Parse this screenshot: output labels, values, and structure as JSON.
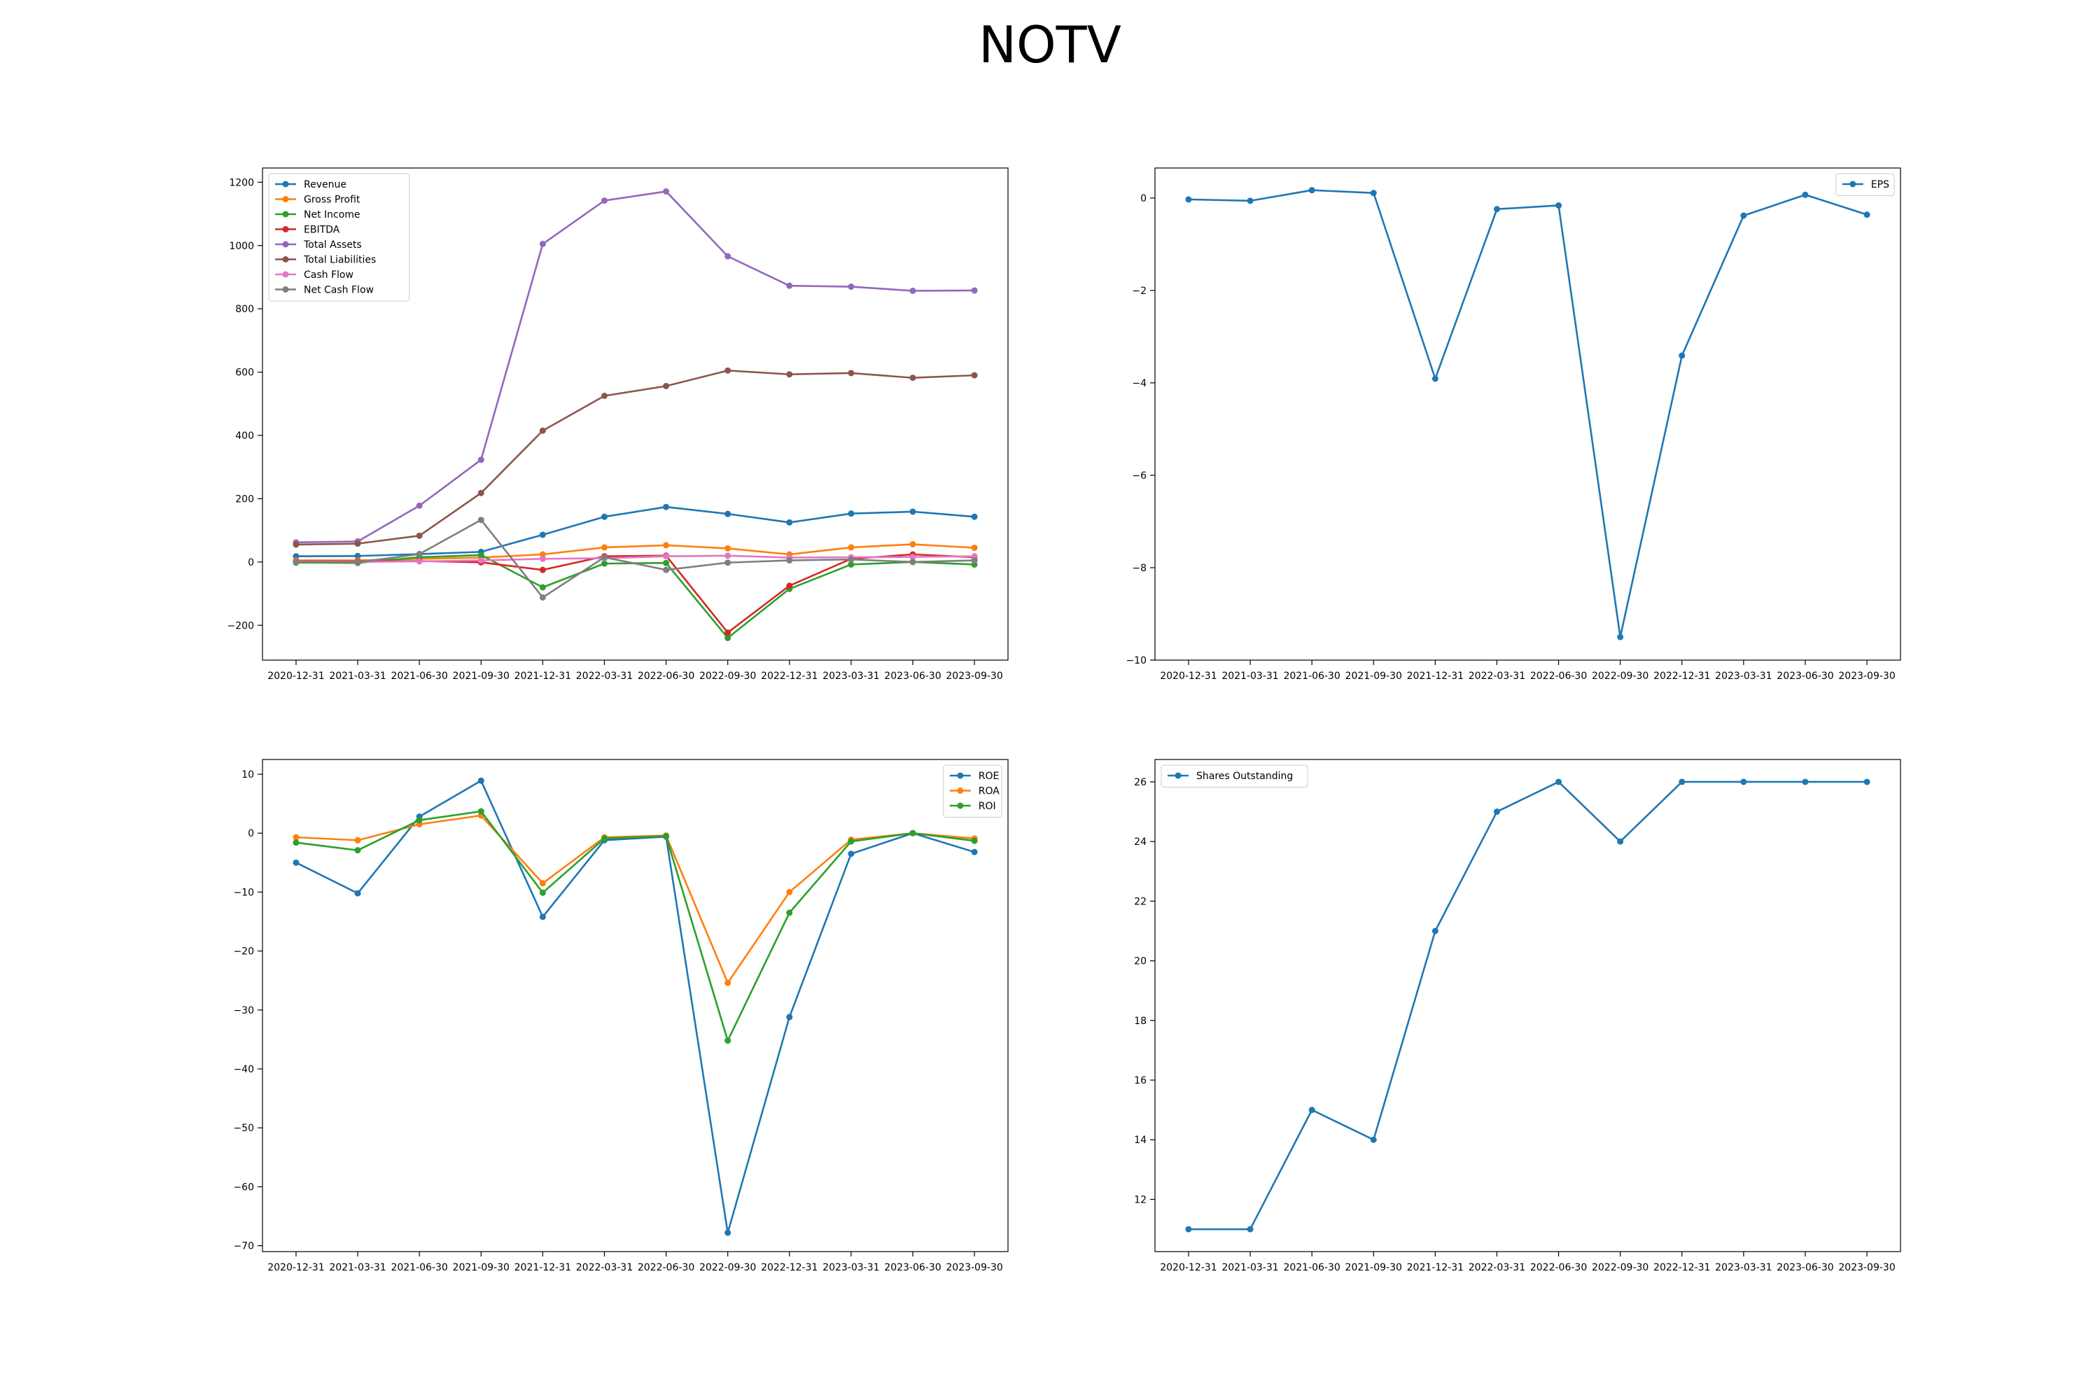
{
  "title": "NOTV",
  "chart_data": [
    {
      "type": "line",
      "x": [
        "2020-12-31",
        "2021-03-31",
        "2021-06-30",
        "2021-09-30",
        "2021-12-31",
        "2022-03-31",
        "2022-06-30",
        "2022-09-30",
        "2022-12-31",
        "2023-03-31",
        "2023-06-30",
        "2023-09-30"
      ],
      "ylim": [
        -310,
        1245
      ],
      "yticks": [
        -200,
        0,
        200,
        400,
        600,
        800,
        1000,
        1200
      ],
      "legend": "top-left",
      "grid": false,
      "series": [
        {
          "name": "Revenue",
          "color": "#1f77b4",
          "values": [
            18,
            19,
            25,
            32,
            86,
            143,
            174,
            152,
            125,
            153,
            159,
            143
          ]
        },
        {
          "name": "Gross Profit",
          "color": "#ff7f0e",
          "values": [
            5,
            5,
            10,
            14,
            24,
            46,
            53,
            43,
            24,
            46,
            56,
            45
          ]
        },
        {
          "name": "Net Income",
          "color": "#2ca02c",
          "values": [
            -2,
            -3,
            15,
            22,
            -80,
            -5,
            -3,
            -240,
            -85,
            -8,
            0,
            -8
          ]
        },
        {
          "name": "EBITDA",
          "color": "#d62728",
          "values": [
            2,
            2,
            3,
            -1,
            -25,
            18,
            20,
            -223,
            -75,
            10,
            24,
            15
          ]
        },
        {
          "name": "Total Assets",
          "color": "#9467bd",
          "values": [
            62,
            65,
            178,
            323,
            1005,
            1142,
            1171,
            966,
            873,
            870,
            857,
            858
          ]
        },
        {
          "name": "Total Liabilities",
          "color": "#8c564b",
          "values": [
            55,
            58,
            83,
            218,
            415,
            525,
            556,
            605,
            593,
            597,
            582,
            590
          ]
        },
        {
          "name": "Cash Flow",
          "color": "#e377c2",
          "values": [
            1,
            0,
            2,
            5,
            10,
            12,
            18,
            20,
            14,
            15,
            16,
            18
          ]
        },
        {
          "name": "Net Cash Flow",
          "color": "#7f7f7f",
          "values": [
            0,
            -1,
            25,
            133,
            -112,
            15,
            -25,
            -2,
            5,
            8,
            0,
            5
          ]
        }
      ]
    },
    {
      "type": "line",
      "x": [
        "2020-12-31",
        "2021-03-31",
        "2021-06-30",
        "2021-09-30",
        "2021-12-31",
        "2022-03-31",
        "2022-06-30",
        "2022-09-30",
        "2022-12-31",
        "2023-03-31",
        "2023-06-30",
        "2023-09-30"
      ],
      "ylim": [
        -10,
        0.65
      ],
      "yticks": [
        -10,
        -8,
        -6,
        -4,
        -2,
        0
      ],
      "legend": "top-right",
      "grid": false,
      "series": [
        {
          "name": "EPS",
          "color": "#1f77b4",
          "values": [
            -0.03,
            -0.06,
            0.17,
            0.11,
            -3.91,
            -0.24,
            -0.16,
            -9.5,
            -3.41,
            -0.38,
            0.07,
            -0.36
          ]
        }
      ]
    },
    {
      "type": "line",
      "x": [
        "2020-12-31",
        "2021-03-31",
        "2021-06-30",
        "2021-09-30",
        "2021-12-31",
        "2022-03-31",
        "2022-06-30",
        "2022-09-30",
        "2022-12-31",
        "2023-03-31",
        "2023-06-30",
        "2023-09-30"
      ],
      "ylim": [
        -71,
        12.5
      ],
      "yticks": [
        -70,
        -60,
        -50,
        -40,
        -30,
        -20,
        -10,
        0,
        10
      ],
      "legend": "top-right",
      "grid": false,
      "series": [
        {
          "name": "ROE",
          "color": "#1f77b4",
          "values": [
            -5,
            -10.2,
            2.8,
            8.9,
            -14.2,
            -1.2,
            -0.6,
            -67.8,
            -31.2,
            -3.5,
            0,
            -3.2
          ]
        },
        {
          "name": "ROA",
          "color": "#ff7f0e",
          "values": [
            -0.7,
            -1.2,
            1.5,
            3,
            -8.5,
            -0.7,
            -0.4,
            -25.4,
            -10,
            -1.1,
            0,
            -0.9
          ]
        },
        {
          "name": "ROI",
          "color": "#2ca02c",
          "values": [
            -1.6,
            -2.9,
            2.2,
            3.7,
            -10.1,
            -0.9,
            -0.5,
            -35.2,
            -13.5,
            -1.4,
            0,
            -1.3
          ]
        }
      ]
    },
    {
      "type": "line",
      "x": [
        "2020-12-31",
        "2021-03-31",
        "2021-06-30",
        "2021-09-30",
        "2021-12-31",
        "2022-03-31",
        "2022-06-30",
        "2022-09-30",
        "2022-12-31",
        "2023-03-31",
        "2023-06-30",
        "2023-09-30"
      ],
      "ylim": [
        10.25,
        26.75
      ],
      "yticks": [
        12,
        14,
        16,
        18,
        20,
        22,
        24,
        26
      ],
      "legend": "top-left",
      "grid": false,
      "series": [
        {
          "name": "Shares Outstanding",
          "color": "#1f77b4",
          "values": [
            11,
            11,
            15,
            14,
            21,
            25,
            26,
            24,
            26,
            26,
            26,
            26
          ]
        }
      ]
    }
  ]
}
